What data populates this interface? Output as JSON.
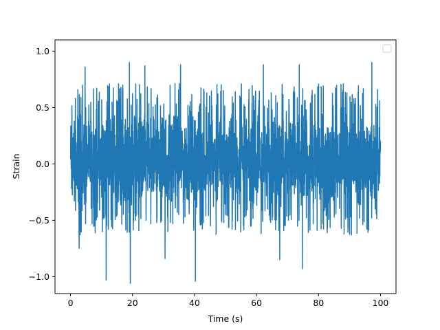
{
  "chart_data": {
    "type": "line",
    "title": "",
    "xlabel": "Time (s)",
    "ylabel": "Strain",
    "xlim": [
      -5,
      105
    ],
    "ylim": [
      -1.15,
      1.1
    ],
    "x_ticks": [
      0,
      20,
      40,
      60,
      80,
      100
    ],
    "x_tick_labels": [
      "0",
      "20",
      "40",
      "60",
      "80",
      "100"
    ],
    "y_ticks": [
      -1.0,
      -0.5,
      0.0,
      0.5,
      1.0
    ],
    "y_tick_labels": [
      "−1.0",
      "−0.5",
      "0.0",
      "0.5",
      "1.0"
    ],
    "grid": false,
    "legend": {
      "placement": "top-right",
      "entries": []
    },
    "series": [
      {
        "color": "#1f77b4",
        "x_start": 0,
        "x_end": 100,
        "typical_range": [
          -0.55,
          0.62
        ],
        "peaks": [
          {
            "x": 4.7,
            "y": 0.86
          },
          {
            "x": 19.0,
            "y": 0.9
          },
          {
            "x": 24.0,
            "y": 0.87
          },
          {
            "x": 35.5,
            "y": 0.88
          },
          {
            "x": 62.2,
            "y": 0.88
          },
          {
            "x": 73.8,
            "y": 0.88
          },
          {
            "x": 97.2,
            "y": 0.9
          },
          {
            "x": 11.5,
            "y": -1.03
          },
          {
            "x": 19.3,
            "y": -1.06
          },
          {
            "x": 40.3,
            "y": -1.04
          },
          {
            "x": 2.8,
            "y": -0.75
          },
          {
            "x": 30.5,
            "y": -0.84
          },
          {
            "x": 67.5,
            "y": -0.85
          },
          {
            "x": 74.8,
            "y": -0.93
          }
        ]
      }
    ]
  }
}
